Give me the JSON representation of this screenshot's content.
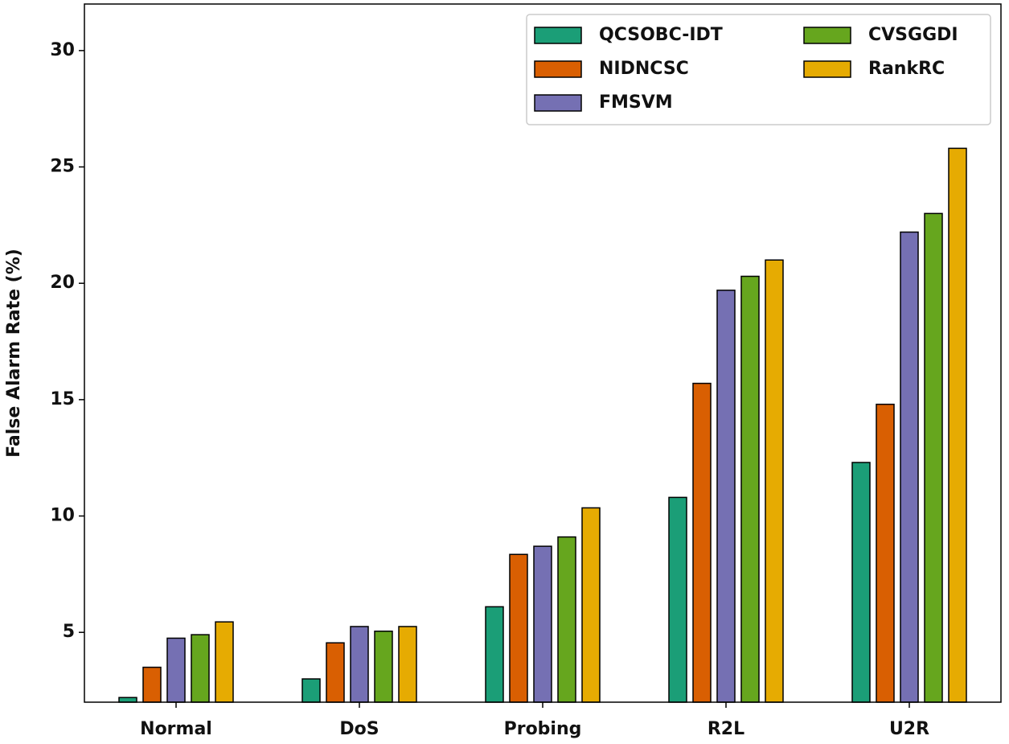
{
  "chart_data": {
    "type": "bar",
    "y_label": "False Alarm Rate (%)",
    "categories": [
      "Normal",
      "DoS",
      "Probing",
      "R2L",
      "U2R"
    ],
    "series": [
      {
        "name": "QCSOBC-IDT",
        "color": "#1b9e77",
        "values": [
          2.2,
          3.0,
          6.1,
          10.8,
          12.3
        ]
      },
      {
        "name": "NIDNCSC",
        "color": "#d95f02",
        "values": [
          3.5,
          4.55,
          8.35,
          15.7,
          14.8
        ]
      },
      {
        "name": "FMSVM",
        "color": "#7570b3",
        "values": [
          4.75,
          5.25,
          8.7,
          19.7,
          22.2
        ]
      },
      {
        "name": "CVSGGDI",
        "color": "#66a61e",
        "values": [
          4.9,
          5.05,
          9.1,
          20.3,
          23.0
        ]
      },
      {
        "name": "RankRC",
        "color": "#e6ab02",
        "values": [
          5.45,
          5.25,
          10.35,
          21.0,
          25.8
        ]
      }
    ],
    "ylim": [
      2,
      32
    ],
    "yticks": [
      5,
      10,
      15,
      20,
      25,
      30
    ],
    "legend": "upper right"
  }
}
